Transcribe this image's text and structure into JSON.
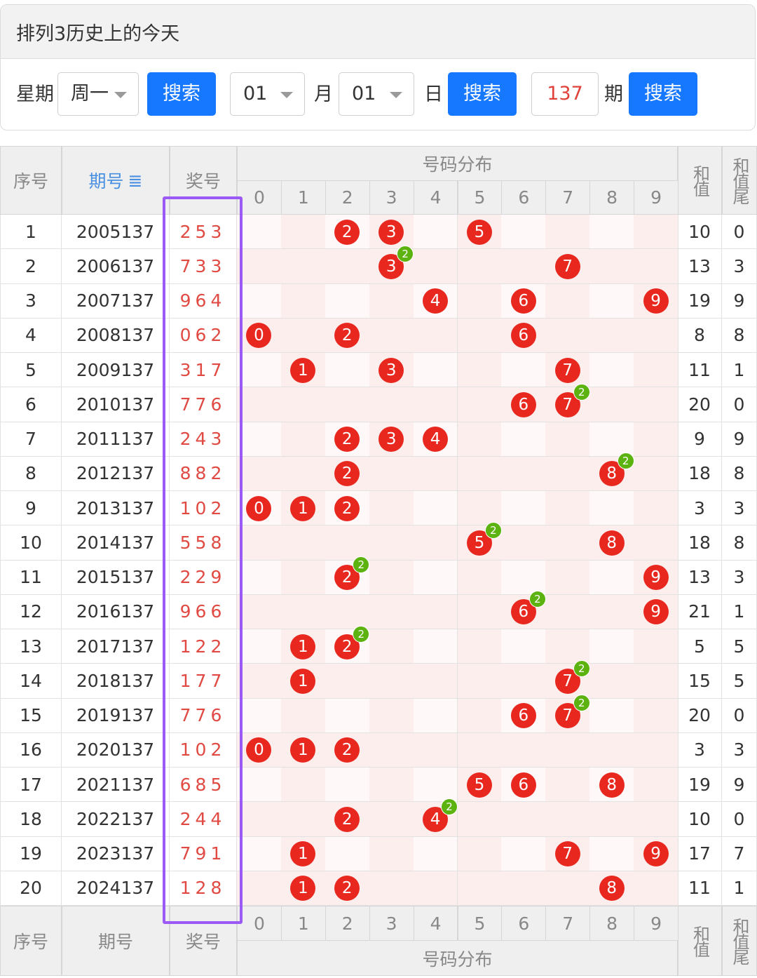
{
  "page_title": "排列3历史上的今天",
  "filters": {
    "weekday_label": "星期",
    "weekday_value": "周一",
    "search1": "搜索",
    "month_value": "01",
    "month_label": "月",
    "day_value": "01",
    "day_label": "日",
    "search2": "搜索",
    "issue_value": "137",
    "issue_label": "期",
    "search3": "搜索"
  },
  "table": {
    "headers": {
      "seq": "序号",
      "issue": "期号",
      "sort_icon": "sort-icon",
      "number": "奖号",
      "distribution": "号码分布",
      "digits": [
        "0",
        "1",
        "2",
        "3",
        "4",
        "5",
        "6",
        "7",
        "8",
        "9"
      ],
      "sum": "和值",
      "sum_tail": "和值尾"
    },
    "rows": [
      {
        "seq": "1",
        "issue": "2005137",
        "number": "253",
        "sum": "10",
        "tail": "0"
      },
      {
        "seq": "2",
        "issue": "2006137",
        "number": "733",
        "sum": "13",
        "tail": "3"
      },
      {
        "seq": "3",
        "issue": "2007137",
        "number": "964",
        "sum": "19",
        "tail": "9"
      },
      {
        "seq": "4",
        "issue": "2008137",
        "number": "062",
        "sum": "8",
        "tail": "8"
      },
      {
        "seq": "5",
        "issue": "2009137",
        "number": "317",
        "sum": "11",
        "tail": "1"
      },
      {
        "seq": "6",
        "issue": "2010137",
        "number": "776",
        "sum": "20",
        "tail": "0"
      },
      {
        "seq": "7",
        "issue": "2011137",
        "number": "243",
        "sum": "9",
        "tail": "9"
      },
      {
        "seq": "8",
        "issue": "2012137",
        "number": "882",
        "sum": "18",
        "tail": "8"
      },
      {
        "seq": "9",
        "issue": "2013137",
        "number": "102",
        "sum": "3",
        "tail": "3"
      },
      {
        "seq": "10",
        "issue": "2014137",
        "number": "558",
        "sum": "18",
        "tail": "8"
      },
      {
        "seq": "11",
        "issue": "2015137",
        "number": "229",
        "sum": "13",
        "tail": "3"
      },
      {
        "seq": "12",
        "issue": "2016137",
        "number": "966",
        "sum": "21",
        "tail": "1"
      },
      {
        "seq": "13",
        "issue": "2017137",
        "number": "122",
        "sum": "5",
        "tail": "5"
      },
      {
        "seq": "14",
        "issue": "2018137",
        "number": "177",
        "sum": "15",
        "tail": "5"
      },
      {
        "seq": "15",
        "issue": "2019137",
        "number": "776",
        "sum": "20",
        "tail": "0"
      },
      {
        "seq": "16",
        "issue": "2020137",
        "number": "102",
        "sum": "3",
        "tail": "3"
      },
      {
        "seq": "17",
        "issue": "2021137",
        "number": "685",
        "sum": "19",
        "tail": "9"
      },
      {
        "seq": "18",
        "issue": "2022137",
        "number": "244",
        "sum": "10",
        "tail": "0"
      },
      {
        "seq": "19",
        "issue": "2023137",
        "number": "791",
        "sum": "17",
        "tail": "7"
      },
      {
        "seq": "20",
        "issue": "2024137",
        "number": "128",
        "sum": "11",
        "tail": "1"
      }
    ]
  },
  "colors": {
    "accent": "#1677ff",
    "ball": "#e8281f",
    "repeat_badge": "#5cb20f",
    "number_text": "#e14a43",
    "highlight_box": "#9b59f5"
  }
}
